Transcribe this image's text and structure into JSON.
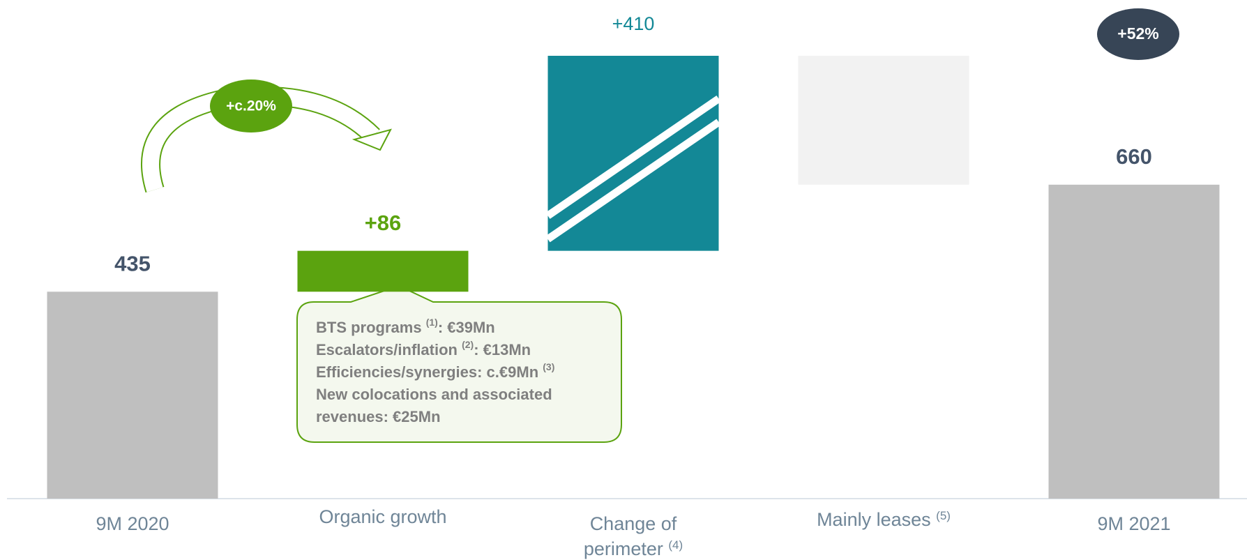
{
  "chart_data": {
    "type": "waterfall",
    "categories": [
      "9M 2020",
      "Organic growth",
      "Change of perimeter",
      "Mainly leases",
      "9M 2021"
    ],
    "category_notes": [
      null,
      null,
      "(4)",
      "(5)",
      null
    ],
    "values": [
      435,
      86,
      410,
      -271,
      660
    ],
    "value_labels": [
      "435",
      "+86",
      "+410",
      null,
      "660"
    ],
    "kinds": [
      "total",
      "delta",
      "delta",
      "delta",
      "total"
    ],
    "colors": [
      "#bfbfbf",
      "#5ba30f",
      "#138896",
      "#f2f2f2",
      "#bfbfbf"
    ],
    "label_colors": [
      "#44546a",
      "#5ba30f",
      "#138896",
      null,
      "#44546a"
    ],
    "growth_bubble": "+c.20%",
    "total_badge": "+52%",
    "callout": [
      [
        "BTS programs ",
        "(1)",
        ": €39Mn"
      ],
      [
        "Escalators/inflation ",
        "(2)",
        ": €13Mn"
      ],
      [
        "Efficiencies/synergies: c.€9Mn ",
        "(3)"
      ],
      [
        "New colocations and associated"
      ],
      [
        "revenues: €25Mn"
      ]
    ]
  }
}
